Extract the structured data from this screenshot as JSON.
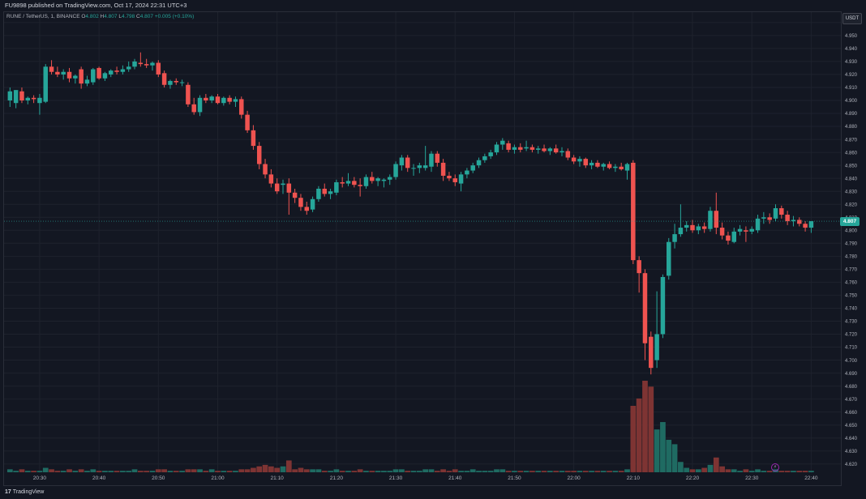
{
  "header": {
    "published": "FU9898 published on TradingView.com, Oct 17, 2024 22:31 UTC+3"
  },
  "legend": {
    "symbol": "RUNE / TetherUS, 1, BINANCE",
    "o_label": "O",
    "o_value": "4.802",
    "h_label": "H",
    "h_value": "4.807",
    "l_label": "L",
    "l_value": "4.798",
    "c_label": "C",
    "c_value": "4.807",
    "change": "+0.005 (+0.10%)"
  },
  "currency": "USDT",
  "last_price": "4.807",
  "footer": {
    "brand": "TradingView",
    "logo": "17"
  },
  "colors": {
    "up": "#26a69a",
    "down": "#ef5350",
    "up_volume": "#1f6b62",
    "down_volume": "#7e3433",
    "background": "#131722",
    "grid": "#1e222d"
  },
  "chart_data": {
    "type": "candlestick",
    "y_axis_ticks": [
      "4.620",
      "4.630",
      "4.640",
      "4.650",
      "4.660",
      "4.670",
      "4.680",
      "4.690",
      "4.700",
      "4.710",
      "4.720",
      "4.730",
      "4.740",
      "4.750",
      "4.760",
      "4.770",
      "4.780",
      "4.790",
      "4.800",
      "4.810",
      "4.820",
      "4.830",
      "4.840",
      "4.850",
      "4.860",
      "4.870",
      "4.880",
      "4.890",
      "4.900",
      "4.910",
      "4.920",
      "4.930",
      "4.940",
      "4.950",
      "4.960"
    ],
    "ylim": [
      4.613,
      4.968
    ],
    "x_axis_ticks": [
      "20:30",
      "20:40",
      "20:50",
      "21:00",
      "21:10",
      "21:20",
      "21:30",
      "21:40",
      "21:50",
      "22:00",
      "22:10",
      "22:20",
      "22:30",
      "22:40"
    ],
    "x_start_minute": 1224,
    "x_end_minute": 1365,
    "grid": true,
    "candles": [
      {
        "t": 1225,
        "o": 4.9,
        "h": 4.91,
        "l": 4.895,
        "c": 4.907,
        "v": 2
      },
      {
        "t": 1226,
        "o": 4.898,
        "h": 4.908,
        "l": 4.894,
        "c": 4.908,
        "v": 1
      },
      {
        "t": 1227,
        "o": 4.907,
        "h": 4.91,
        "l": 4.898,
        "c": 4.9,
        "v": 2
      },
      {
        "t": 1228,
        "o": 4.9,
        "h": 4.903,
        "l": 4.897,
        "c": 4.902,
        "v": 1
      },
      {
        "t": 1229,
        "o": 4.902,
        "h": 4.904,
        "l": 4.898,
        "c": 4.901,
        "v": 1
      },
      {
        "t": 1230,
        "o": 4.898,
        "h": 4.905,
        "l": 4.889,
        "c": 4.902,
        "v": 1
      },
      {
        "t": 1231,
        "o": 4.899,
        "h": 4.928,
        "l": 4.898,
        "c": 4.926,
        "v": 3
      },
      {
        "t": 1232,
        "o": 4.926,
        "h": 4.931,
        "l": 4.92,
        "c": 4.922,
        "v": 2
      },
      {
        "t": 1233,
        "o": 4.922,
        "h": 4.926,
        "l": 4.918,
        "c": 4.92,
        "v": 1
      },
      {
        "t": 1234,
        "o": 4.92,
        "h": 4.924,
        "l": 4.916,
        "c": 4.922,
        "v": 1
      },
      {
        "t": 1235,
        "o": 4.922,
        "h": 4.925,
        "l": 4.914,
        "c": 4.917,
        "v": 2
      },
      {
        "t": 1236,
        "o": 4.917,
        "h": 4.92,
        "l": 4.913,
        "c": 4.919,
        "v": 1
      },
      {
        "t": 1237,
        "o": 4.924,
        "h": 4.926,
        "l": 4.909,
        "c": 4.913,
        "v": 2
      },
      {
        "t": 1238,
        "o": 4.913,
        "h": 4.919,
        "l": 4.911,
        "c": 4.916,
        "v": 1
      },
      {
        "t": 1239,
        "o": 4.914,
        "h": 4.925,
        "l": 4.912,
        "c": 4.924,
        "v": 2
      },
      {
        "t": 1240,
        "o": 4.925,
        "h": 4.926,
        "l": 4.916,
        "c": 4.917,
        "v": 1
      },
      {
        "t": 1241,
        "o": 4.917,
        "h": 4.922,
        "l": 4.915,
        "c": 4.921,
        "v": 1
      },
      {
        "t": 1242,
        "o": 4.92,
        "h": 4.924,
        "l": 4.918,
        "c": 4.923,
        "v": 1
      },
      {
        "t": 1243,
        "o": 4.923,
        "h": 4.926,
        "l": 4.92,
        "c": 4.922,
        "v": 1
      },
      {
        "t": 1244,
        "o": 4.922,
        "h": 4.927,
        "l": 4.92,
        "c": 4.924,
        "v": 1
      },
      {
        "t": 1245,
        "o": 4.924,
        "h": 4.93,
        "l": 4.922,
        "c": 4.926,
        "v": 1
      },
      {
        "t": 1246,
        "o": 4.926,
        "h": 4.932,
        "l": 4.924,
        "c": 4.93,
        "v": 2
      },
      {
        "t": 1247,
        "o": 4.929,
        "h": 4.937,
        "l": 4.926,
        "c": 4.928,
        "v": 1
      },
      {
        "t": 1248,
        "o": 4.928,
        "h": 4.932,
        "l": 4.925,
        "c": 4.927,
        "v": 1
      },
      {
        "t": 1249,
        "o": 4.927,
        "h": 4.93,
        "l": 4.923,
        "c": 4.929,
        "v": 1
      },
      {
        "t": 1250,
        "o": 4.929,
        "h": 4.931,
        "l": 4.918,
        "c": 4.92,
        "v": 2
      },
      {
        "t": 1251,
        "o": 4.921,
        "h": 4.923,
        "l": 4.91,
        "c": 4.912,
        "v": 2
      },
      {
        "t": 1252,
        "o": 4.912,
        "h": 4.916,
        "l": 4.909,
        "c": 4.915,
        "v": 1
      },
      {
        "t": 1253,
        "o": 4.915,
        "h": 4.917,
        "l": 4.912,
        "c": 4.914,
        "v": 1
      },
      {
        "t": 1254,
        "o": 4.914,
        "h": 4.916,
        "l": 4.911,
        "c": 4.914,
        "v": 1
      },
      {
        "t": 1255,
        "o": 4.912,
        "h": 4.914,
        "l": 4.895,
        "c": 4.897,
        "v": 2
      },
      {
        "t": 1256,
        "o": 4.897,
        "h": 4.902,
        "l": 4.889,
        "c": 4.891,
        "v": 2
      },
      {
        "t": 1257,
        "o": 4.891,
        "h": 4.904,
        "l": 4.888,
        "c": 4.902,
        "v": 2
      },
      {
        "t": 1258,
        "o": 4.902,
        "h": 4.905,
        "l": 4.898,
        "c": 4.9,
        "v": 1
      },
      {
        "t": 1259,
        "o": 4.9,
        "h": 4.904,
        "l": 4.898,
        "c": 4.903,
        "v": 2
      },
      {
        "t": 1260,
        "o": 4.903,
        "h": 4.905,
        "l": 4.897,
        "c": 4.898,
        "v": 1
      },
      {
        "t": 1261,
        "o": 4.898,
        "h": 4.903,
        "l": 4.896,
        "c": 4.902,
        "v": 1
      },
      {
        "t": 1262,
        "o": 4.902,
        "h": 4.904,
        "l": 4.897,
        "c": 4.899,
        "v": 1
      },
      {
        "t": 1263,
        "o": 4.899,
        "h": 4.903,
        "l": 4.895,
        "c": 4.901,
        "v": 1
      },
      {
        "t": 1264,
        "o": 4.901,
        "h": 4.903,
        "l": 4.886,
        "c": 4.889,
        "v": 2
      },
      {
        "t": 1265,
        "o": 4.889,
        "h": 4.892,
        "l": 4.875,
        "c": 4.877,
        "v": 2
      },
      {
        "t": 1266,
        "o": 4.877,
        "h": 4.881,
        "l": 4.862,
        "c": 4.865,
        "v": 3
      },
      {
        "t": 1267,
        "o": 4.865,
        "h": 4.868,
        "l": 4.847,
        "c": 4.851,
        "v": 4
      },
      {
        "t": 1268,
        "o": 4.851,
        "h": 4.855,
        "l": 4.84,
        "c": 4.843,
        "v": 5
      },
      {
        "t": 1269,
        "o": 4.843,
        "h": 4.847,
        "l": 4.833,
        "c": 4.836,
        "v": 4
      },
      {
        "t": 1270,
        "o": 4.836,
        "h": 4.84,
        "l": 4.828,
        "c": 4.83,
        "v": 3
      },
      {
        "t": 1271,
        "o": 4.835,
        "h": 4.839,
        "l": 4.828,
        "c": 4.836,
        "v": 4
      },
      {
        "t": 1272,
        "o": 4.836,
        "h": 4.84,
        "l": 4.812,
        "c": 4.829,
        "v": 8
      },
      {
        "t": 1273,
        "o": 4.829,
        "h": 4.832,
        "l": 4.821,
        "c": 4.825,
        "v": 2
      },
      {
        "t": 1274,
        "o": 4.825,
        "h": 4.828,
        "l": 4.815,
        "c": 4.818,
        "v": 3
      },
      {
        "t": 1275,
        "o": 4.818,
        "h": 4.822,
        "l": 4.812,
        "c": 4.815,
        "v": 2
      },
      {
        "t": 1276,
        "o": 4.816,
        "h": 4.826,
        "l": 4.814,
        "c": 4.824,
        "v": 2
      },
      {
        "t": 1277,
        "o": 4.824,
        "h": 4.834,
        "l": 4.822,
        "c": 4.832,
        "v": 2
      },
      {
        "t": 1278,
        "o": 4.832,
        "h": 4.836,
        "l": 4.826,
        "c": 4.828,
        "v": 1
      },
      {
        "t": 1279,
        "o": 4.828,
        "h": 4.832,
        "l": 4.824,
        "c": 4.83,
        "v": 1
      },
      {
        "t": 1280,
        "o": 4.829,
        "h": 4.839,
        "l": 4.827,
        "c": 4.837,
        "v": 2
      },
      {
        "t": 1281,
        "o": 4.837,
        "h": 4.841,
        "l": 4.833,
        "c": 4.836,
        "v": 1
      },
      {
        "t": 1282,
        "o": 4.836,
        "h": 4.844,
        "l": 4.834,
        "c": 4.838,
        "v": 1
      },
      {
        "t": 1283,
        "o": 4.838,
        "h": 4.841,
        "l": 4.833,
        "c": 4.835,
        "v": 1
      },
      {
        "t": 1284,
        "o": 4.835,
        "h": 4.84,
        "l": 4.826,
        "c": 4.834,
        "v": 2
      },
      {
        "t": 1285,
        "o": 4.834,
        "h": 4.843,
        "l": 4.832,
        "c": 4.841,
        "v": 1
      },
      {
        "t": 1286,
        "o": 4.841,
        "h": 4.845,
        "l": 4.836,
        "c": 4.838,
        "v": 1
      },
      {
        "t": 1287,
        "o": 4.838,
        "h": 4.841,
        "l": 4.834,
        "c": 4.84,
        "v": 1
      },
      {
        "t": 1288,
        "o": 4.838,
        "h": 4.84,
        "l": 4.833,
        "c": 4.839,
        "v": 1
      },
      {
        "t": 1289,
        "o": 4.839,
        "h": 4.843,
        "l": 4.835,
        "c": 4.841,
        "v": 1
      },
      {
        "t": 1290,
        "o": 4.841,
        "h": 4.853,
        "l": 4.839,
        "c": 4.851,
        "v": 2
      },
      {
        "t": 1291,
        "o": 4.85,
        "h": 4.858,
        "l": 4.846,
        "c": 4.856,
        "v": 2
      },
      {
        "t": 1292,
        "o": 4.856,
        "h": 4.858,
        "l": 4.845,
        "c": 4.848,
        "v": 1
      },
      {
        "t": 1293,
        "o": 4.848,
        "h": 4.851,
        "l": 4.842,
        "c": 4.848,
        "v": 1
      },
      {
        "t": 1294,
        "o": 4.848,
        "h": 4.852,
        "l": 4.844,
        "c": 4.85,
        "v": 1
      },
      {
        "t": 1295,
        "o": 4.848,
        "h": 4.865,
        "l": 4.846,
        "c": 4.85,
        "v": 2
      },
      {
        "t": 1296,
        "o": 4.849,
        "h": 4.861,
        "l": 4.845,
        "c": 4.859,
        "v": 2
      },
      {
        "t": 1297,
        "o": 4.859,
        "h": 4.861,
        "l": 4.849,
        "c": 4.852,
        "v": 1
      },
      {
        "t": 1298,
        "o": 4.852,
        "h": 4.855,
        "l": 4.838,
        "c": 4.842,
        "v": 2
      },
      {
        "t": 1299,
        "o": 4.842,
        "h": 4.845,
        "l": 4.838,
        "c": 4.84,
        "v": 1
      },
      {
        "t": 1300,
        "o": 4.84,
        "h": 4.843,
        "l": 4.834,
        "c": 4.837,
        "v": 2
      },
      {
        "t": 1301,
        "o": 4.836,
        "h": 4.845,
        "l": 4.83,
        "c": 4.843,
        "v": 1
      },
      {
        "t": 1302,
        "o": 4.843,
        "h": 4.848,
        "l": 4.84,
        "c": 4.846,
        "v": 1
      },
      {
        "t": 1303,
        "o": 4.846,
        "h": 4.852,
        "l": 4.844,
        "c": 4.85,
        "v": 2
      },
      {
        "t": 1304,
        "o": 4.85,
        "h": 4.856,
        "l": 4.848,
        "c": 4.854,
        "v": 1
      },
      {
        "t": 1305,
        "o": 4.854,
        "h": 4.859,
        "l": 4.852,
        "c": 4.857,
        "v": 1
      },
      {
        "t": 1306,
        "o": 4.857,
        "h": 4.862,
        "l": 4.855,
        "c": 4.86,
        "v": 1
      },
      {
        "t": 1307,
        "o": 4.86,
        "h": 4.868,
        "l": 4.858,
        "c": 4.866,
        "v": 2
      },
      {
        "t": 1308,
        "o": 4.866,
        "h": 4.871,
        "l": 4.862,
        "c": 4.869,
        "v": 2
      },
      {
        "t": 1309,
        "o": 4.867,
        "h": 4.869,
        "l": 4.86,
        "c": 4.862,
        "v": 1
      },
      {
        "t": 1310,
        "o": 4.862,
        "h": 4.866,
        "l": 4.859,
        "c": 4.864,
        "v": 1
      },
      {
        "t": 1311,
        "o": 4.864,
        "h": 4.867,
        "l": 4.86,
        "c": 4.862,
        "v": 1
      },
      {
        "t": 1312,
        "o": 4.863,
        "h": 4.869,
        "l": 4.861,
        "c": 4.864,
        "v": 1
      },
      {
        "t": 1313,
        "o": 4.864,
        "h": 4.866,
        "l": 4.86,
        "c": 4.862,
        "v": 1
      },
      {
        "t": 1314,
        "o": 4.862,
        "h": 4.865,
        "l": 4.859,
        "c": 4.863,
        "v": 1
      },
      {
        "t": 1315,
        "o": 4.863,
        "h": 4.866,
        "l": 4.86,
        "c": 4.861,
        "v": 1
      },
      {
        "t": 1316,
        "o": 4.861,
        "h": 4.864,
        "l": 4.858,
        "c": 4.863,
        "v": 1
      },
      {
        "t": 1317,
        "o": 4.863,
        "h": 4.866,
        "l": 4.859,
        "c": 4.86,
        "v": 1
      },
      {
        "t": 1318,
        "o": 4.86,
        "h": 4.864,
        "l": 4.857,
        "c": 4.861,
        "v": 1
      },
      {
        "t": 1319,
        "o": 4.861,
        "h": 4.863,
        "l": 4.854,
        "c": 4.856,
        "v": 1
      },
      {
        "t": 1320,
        "o": 4.856,
        "h": 4.858,
        "l": 4.851,
        "c": 4.853,
        "v": 1
      },
      {
        "t": 1321,
        "o": 4.853,
        "h": 4.857,
        "l": 4.849,
        "c": 4.855,
        "v": 1
      },
      {
        "t": 1322,
        "o": 4.855,
        "h": 4.856,
        "l": 4.848,
        "c": 4.85,
        "v": 1
      },
      {
        "t": 1323,
        "o": 4.85,
        "h": 4.854,
        "l": 4.847,
        "c": 4.852,
        "v": 1
      },
      {
        "t": 1324,
        "o": 4.852,
        "h": 4.854,
        "l": 4.848,
        "c": 4.849,
        "v": 1
      },
      {
        "t": 1325,
        "o": 4.849,
        "h": 4.852,
        "l": 4.846,
        "c": 4.851,
        "v": 1
      },
      {
        "t": 1326,
        "o": 4.851,
        "h": 4.853,
        "l": 4.847,
        "c": 4.848,
        "v": 1
      },
      {
        "t": 1327,
        "o": 4.848,
        "h": 4.851,
        "l": 4.845,
        "c": 4.849,
        "v": 1
      },
      {
        "t": 1328,
        "o": 4.849,
        "h": 4.852,
        "l": 4.846,
        "c": 4.847,
        "v": 1
      },
      {
        "t": 1329,
        "o": 4.846,
        "h": 4.852,
        "l": 4.839,
        "c": 4.851,
        "v": 2
      },
      {
        "t": 1330,
        "o": 4.852,
        "h": 4.854,
        "l": 4.774,
        "c": 4.777,
        "v": 45
      },
      {
        "t": 1331,
        "o": 4.777,
        "h": 4.78,
        "l": 4.752,
        "c": 4.767,
        "v": 50
      },
      {
        "t": 1332,
        "o": 4.767,
        "h": 4.77,
        "l": 4.7,
        "c": 4.713,
        "v": 62
      },
      {
        "t": 1333,
        "o": 4.718,
        "h": 4.722,
        "l": 4.689,
        "c": 4.694,
        "v": 58
      },
      {
        "t": 1334,
        "o": 4.7,
        "h": 4.753,
        "l": 4.694,
        "c": 4.72,
        "v": 29
      },
      {
        "t": 1335,
        "o": 4.72,
        "h": 4.766,
        "l": 4.717,
        "c": 4.764,
        "v": 34
      },
      {
        "t": 1336,
        "o": 4.765,
        "h": 4.794,
        "l": 4.762,
        "c": 4.791,
        "v": 22
      },
      {
        "t": 1337,
        "o": 4.791,
        "h": 4.805,
        "l": 4.786,
        "c": 4.797,
        "v": 19
      },
      {
        "t": 1338,
        "o": 4.797,
        "h": 4.82,
        "l": 4.795,
        "c": 4.802,
        "v": 7
      },
      {
        "t": 1339,
        "o": 4.802,
        "h": 4.807,
        "l": 4.799,
        "c": 4.804,
        "v": 3
      },
      {
        "t": 1340,
        "o": 4.804,
        "h": 4.808,
        "l": 4.798,
        "c": 4.8,
        "v": 2
      },
      {
        "t": 1341,
        "o": 4.8,
        "h": 4.805,
        "l": 4.797,
        "c": 4.803,
        "v": 2
      },
      {
        "t": 1342,
        "o": 4.803,
        "h": 4.806,
        "l": 4.798,
        "c": 4.801,
        "v": 3
      },
      {
        "t": 1343,
        "o": 4.801,
        "h": 4.818,
        "l": 4.799,
        "c": 4.815,
        "v": 5
      },
      {
        "t": 1344,
        "o": 4.815,
        "h": 4.829,
        "l": 4.797,
        "c": 4.802,
        "v": 10
      },
      {
        "t": 1345,
        "o": 4.802,
        "h": 4.806,
        "l": 4.793,
        "c": 4.796,
        "v": 4
      },
      {
        "t": 1346,
        "o": 4.796,
        "h": 4.799,
        "l": 4.789,
        "c": 4.792,
        "v": 2
      },
      {
        "t": 1347,
        "o": 4.791,
        "h": 4.802,
        "l": 4.79,
        "c": 4.799,
        "v": 2
      },
      {
        "t": 1348,
        "o": 4.799,
        "h": 4.804,
        "l": 4.796,
        "c": 4.801,
        "v": 1
      },
      {
        "t": 1349,
        "o": 4.8,
        "h": 4.803,
        "l": 4.791,
        "c": 4.799,
        "v": 2
      },
      {
        "t": 1350,
        "o": 4.799,
        "h": 4.803,
        "l": 4.797,
        "c": 4.801,
        "v": 1
      },
      {
        "t": 1351,
        "o": 4.8,
        "h": 4.812,
        "l": 4.798,
        "c": 4.809,
        "v": 2
      },
      {
        "t": 1352,
        "o": 4.809,
        "h": 4.814,
        "l": 4.805,
        "c": 4.81,
        "v": 1
      },
      {
        "t": 1353,
        "o": 4.81,
        "h": 4.813,
        "l": 4.805,
        "c": 4.808,
        "v": 1
      },
      {
        "t": 1354,
        "o": 4.809,
        "h": 4.82,
        "l": 4.807,
        "c": 4.817,
        "v": 2
      },
      {
        "t": 1355,
        "o": 4.817,
        "h": 4.819,
        "l": 4.809,
        "c": 4.812,
        "v": 1
      },
      {
        "t": 1356,
        "o": 4.812,
        "h": 4.815,
        "l": 4.804,
        "c": 4.807,
        "v": 1
      },
      {
        "t": 1357,
        "o": 4.807,
        "h": 4.811,
        "l": 4.803,
        "c": 4.808,
        "v": 1
      },
      {
        "t": 1358,
        "o": 4.808,
        "h": 4.81,
        "l": 4.803,
        "c": 4.805,
        "v": 1
      },
      {
        "t": 1359,
        "o": 4.805,
        "h": 4.807,
        "l": 4.799,
        "c": 4.802,
        "v": 1
      },
      {
        "t": 1360,
        "o": 4.802,
        "h": 4.807,
        "l": 4.798,
        "c": 4.807,
        "v": 1
      }
    ]
  }
}
